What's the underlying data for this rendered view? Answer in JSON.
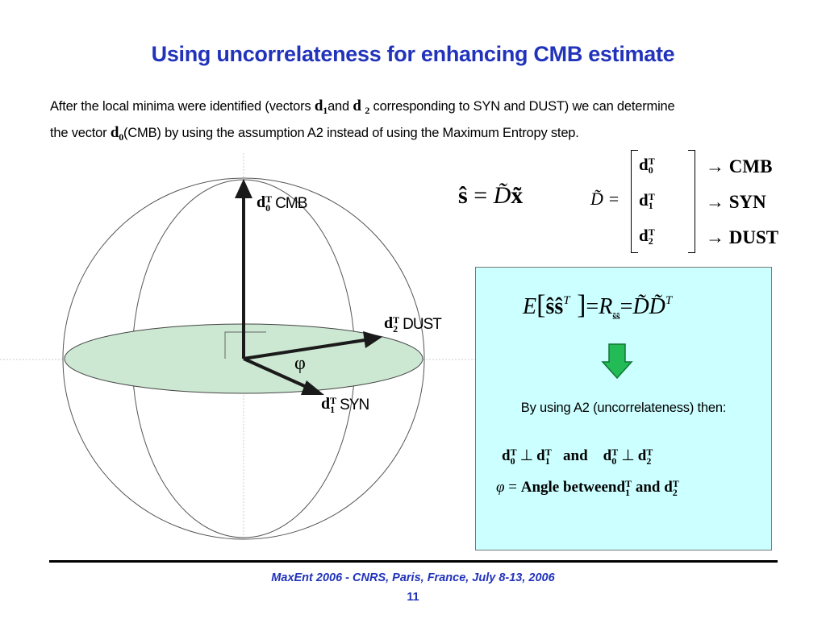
{
  "title": "Using uncorrelateness for enhancing CMB estimate",
  "intro": {
    "p1": "After the local minima were identified (vectors",
    "d1": "d",
    "d1_sub": "1",
    "and": "and",
    "d2": "d",
    "d2_sub": "2",
    "p2": "corresponding to SYN and DUST) we can determine",
    "p3": "the vector",
    "d0": "d",
    "d0_sub": "0",
    "p4": "(CMB) by using the assumption A2 instead of using the Maximum Entropy step."
  },
  "sphere": {
    "cmb": {
      "vec": "d",
      "sup": "T",
      "sub": "0",
      "name": "CMB"
    },
    "dust": {
      "vec": "d",
      "sup": "T",
      "sub": "2",
      "name": "DUST"
    },
    "syn": {
      "vec": "d",
      "sup": "T",
      "sub": "1",
      "name": "SYN"
    },
    "angle": "φ",
    "disk_color": "#cce8d2",
    "arrow_color": "#1a1a1a"
  },
  "estimate_eq": {
    "lhs": "ŝ",
    "eq": "=",
    "D": "D̃",
    "x": "x̃"
  },
  "matrix": {
    "label": "D̃ =",
    "rows": [
      {
        "vec": "d",
        "sup": "T",
        "sub": "0",
        "target": "→  CMB"
      },
      {
        "vec": "d",
        "sup": "T",
        "sub": "1",
        "target": "→  SYN"
      },
      {
        "vec": "d",
        "sup": "T",
        "sub": "2",
        "target": "→  DUST"
      }
    ]
  },
  "box": {
    "bg_color": "#ccffff",
    "arrow_color": "#22bb55",
    "eq": {
      "E": "E",
      "ss": "ŝŝ",
      "T": "T",
      "eq1": "=",
      "R": "R",
      "Rsub": "ŝŝ",
      "eq2": "=",
      "DD": "D̃D̃",
      "T2": "T"
    },
    "text": "By using A2 (uncorrelateness) then:",
    "line1": {
      "a": "d",
      "a_sup": "T",
      "a_sub": "0",
      "perp": "⊥",
      "b": "d",
      "b_sup": "T",
      "b_sub": "1",
      "and": "and",
      "c": "d",
      "c_sup": "T",
      "c_sub": "0",
      "perp2": "⊥",
      "e": "d",
      "e_sup": "T",
      "e_sub": "2"
    },
    "line2": {
      "phi": "φ",
      "eq": "=",
      "text": "Angle between",
      "a": "d",
      "a_sup": "T",
      "a_sub": "1",
      "and": "and",
      "b": "d",
      "b_sup": "T",
      "b_sub": "2"
    }
  },
  "footer": "MaxEnt 2006 - CNRS, Paris, France, July 8-13, 2006",
  "page_number": "11"
}
